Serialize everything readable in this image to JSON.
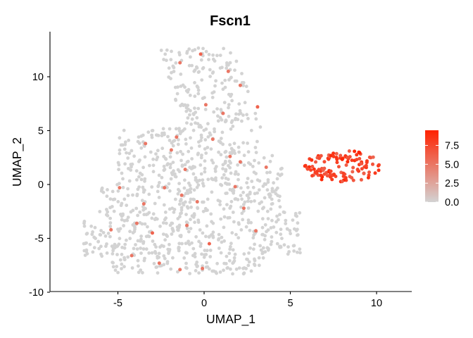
{
  "chart_data": {
    "type": "scatter",
    "title": "Fscn1",
    "xlabel": "UMAP_1",
    "ylabel": "UMAP_2",
    "xlim": [
      -9,
      12
    ],
    "ylim": [
      -10,
      14
    ],
    "x_ticks": [
      "-5",
      "0",
      "5",
      "10"
    ],
    "x_tick_values": [
      -5,
      0,
      5,
      10
    ],
    "y_ticks": [
      "-10",
      "-5",
      "0",
      "5",
      "10"
    ],
    "y_tick_values": [
      -10,
      -5,
      0,
      5,
      10
    ],
    "grid": false,
    "legend": {
      "placement": "right",
      "type": "colorbar",
      "labels": [
        "0.0",
        "2.5",
        "5.0",
        "7.5"
      ],
      "values": [
        0,
        2.5,
        5,
        7.5
      ],
      "range": [
        0,
        9.5
      ],
      "low_color": "#d3d3d3",
      "high_color": "#ff2200"
    },
    "regions": [
      {
        "description": "main cluster",
        "x_range": [
          -7,
          5.5
        ],
        "y_range": [
          -8.2,
          5
        ],
        "expression": 0
      },
      {
        "description": "upper arm",
        "x_range": [
          -2.5,
          3.5
        ],
        "y_range": [
          5,
          12.6
        ],
        "expression": 0
      },
      {
        "description": "bridge",
        "x_range": [
          3,
          4.5
        ],
        "y_range": [
          1.5,
          2.5
        ],
        "expression": 0
      },
      {
        "description": "expressing cluster",
        "x_range": [
          5.8,
          10.2
        ],
        "y_range": [
          0,
          3.5
        ],
        "expression": 8
      }
    ],
    "highlighted_points": [
      {
        "x": -1.4,
        "y": 11.3,
        "value": 5
      },
      {
        "x": -0.2,
        "y": 12.1,
        "value": 6
      },
      {
        "x": 1.4,
        "y": 10.5,
        "value": 5
      },
      {
        "x": 2.1,
        "y": 9.2,
        "value": 5
      },
      {
        "x": 0.1,
        "y": 7.4,
        "value": 5
      },
      {
        "x": 3.1,
        "y": 7.2,
        "value": 6
      },
      {
        "x": 1.1,
        "y": 6.6,
        "value": 5
      },
      {
        "x": -1.6,
        "y": 4.4,
        "value": 5
      },
      {
        "x": -3.4,
        "y": 3.8,
        "value": 5
      },
      {
        "x": -1.9,
        "y": 3.2,
        "value": 5
      },
      {
        "x": 0.5,
        "y": 4.2,
        "value": 5
      },
      {
        "x": 2.1,
        "y": 2.1,
        "value": 5
      },
      {
        "x": 1.5,
        "y": 2.6,
        "value": 5
      },
      {
        "x": -1.1,
        "y": 1.4,
        "value": 5
      },
      {
        "x": -4.9,
        "y": -0.3,
        "value": 5
      },
      {
        "x": -2.3,
        "y": -0.3,
        "value": 5
      },
      {
        "x": -1.3,
        "y": -1.0,
        "value": 5
      },
      {
        "x": -3.5,
        "y": -1.8,
        "value": 5
      },
      {
        "x": -0.4,
        "y": -1.6,
        "value": 5
      },
      {
        "x": -3.9,
        "y": -3.6,
        "value": 5
      },
      {
        "x": -5.4,
        "y": -4.2,
        "value": 5
      },
      {
        "x": -1.0,
        "y": -3.8,
        "value": 5
      },
      {
        "x": -3.0,
        "y": -4.5,
        "value": 6
      },
      {
        "x": 2.3,
        "y": -2.2,
        "value": 5
      },
      {
        "x": 3.0,
        "y": -4.3,
        "value": 5
      },
      {
        "x": -2.6,
        "y": -7.3,
        "value": 5
      },
      {
        "x": -1.4,
        "y": -7.9,
        "value": 5
      },
      {
        "x": 0.3,
        "y": -5.5,
        "value": 6
      },
      {
        "x": -0.1,
        "y": -7.8,
        "value": 5
      },
      {
        "x": -4.2,
        "y": -6.6,
        "value": 5
      },
      {
        "x": 1.8,
        "y": -0.2,
        "value": 5
      },
      {
        "x": 3.6,
        "y": 1.6,
        "value": 5
      }
    ]
  }
}
